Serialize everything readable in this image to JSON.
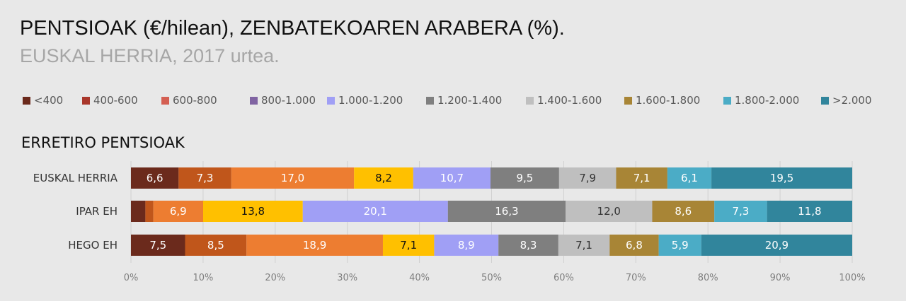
{
  "title": "PENTSIOAK (€/hilean), ZENBATEKOAREN ARABERA (%).",
  "subtitle": "EUSKAL HERRIA, 2017 urtea.",
  "section_title": "ERRETIRO PENTSIOAK",
  "chart_data": {
    "type": "bar",
    "orientation": "horizontal",
    "stacked": "percent",
    "categories": [
      "EUSKAL HERRIA",
      "IPAR EH",
      "HEGO EH"
    ],
    "xlim": [
      0,
      100
    ],
    "xticks": [
      "0%",
      "10%",
      "20%",
      "30%",
      "40%",
      "50%",
      "60%",
      "70%",
      "80%",
      "90%",
      "100%"
    ],
    "legend_position": "top",
    "grid": true,
    "series": [
      {
        "name": "<400",
        "color": "#6b2a1c",
        "values": [
          6.6,
          2.0,
          7.5
        ],
        "labels": [
          "6,6",
          "",
          "7,5"
        ],
        "label_color": "#ffffff"
      },
      {
        "name": "400-600",
        "color": "#c0561b",
        "values": [
          7.3,
          1.1,
          8.5
        ],
        "labels": [
          "7,3",
          "",
          "8,5"
        ],
        "label_color": "#ffffff"
      },
      {
        "name": "600-800",
        "color": "#ed7d31",
        "values": [
          17.0,
          6.9,
          18.9
        ],
        "labels": [
          "17,0",
          "6,9",
          "18,9"
        ],
        "label_color": "#ffffff"
      },
      {
        "name": "800-1.000",
        "color": "#ffc000",
        "values": [
          8.2,
          13.8,
          7.1
        ],
        "labels": [
          "8,2",
          "13,8",
          "7,1"
        ],
        "label_color": "#111111"
      },
      {
        "name": "1.000-1.200",
        "color": "#a09ff5",
        "values": [
          10.7,
          20.1,
          8.9
        ],
        "labels": [
          "10,7",
          "20,1",
          "8,9"
        ],
        "label_color": "#ffffff"
      },
      {
        "name": "1.200-1.400",
        "color": "#7f7f7f",
        "values": [
          9.5,
          16.3,
          8.3
        ],
        "labels": [
          "9,5",
          "16,3",
          "8,3"
        ],
        "label_color": "#ffffff"
      },
      {
        "name": "1.400-1.600",
        "color": "#bfbfbf",
        "values": [
          7.9,
          12.0,
          7.1
        ],
        "labels": [
          "7,9",
          "12,0",
          "7,1"
        ],
        "label_color": "#333333"
      },
      {
        "name": "1.600-1.800",
        "color": "#a88536",
        "values": [
          7.1,
          8.6,
          6.8
        ],
        "labels": [
          "7,1",
          "8,6",
          "6,8"
        ],
        "label_color": "#ffffff"
      },
      {
        "name": "1.800-2.000",
        "color": "#4bacc6",
        "values": [
          6.1,
          7.3,
          5.9
        ],
        "labels": [
          "6,1",
          "7,3",
          "5,9"
        ],
        "label_color": "#ffffff"
      },
      {
        "name": ">2.000",
        "color": "#31859c",
        "values": [
          19.5,
          11.8,
          20.9
        ],
        "labels": [
          "19,5",
          "11,8",
          "20,9"
        ],
        "label_color": "#ffffff"
      }
    ],
    "legend_colors": [
      "#6b2a1c",
      "#a9372b",
      "#d45f52",
      "#8064a2",
      "#a09ff5",
      "#7f7f7f",
      "#bfbfbf",
      "#a88536",
      "#4bacc6",
      "#31859c"
    ]
  }
}
